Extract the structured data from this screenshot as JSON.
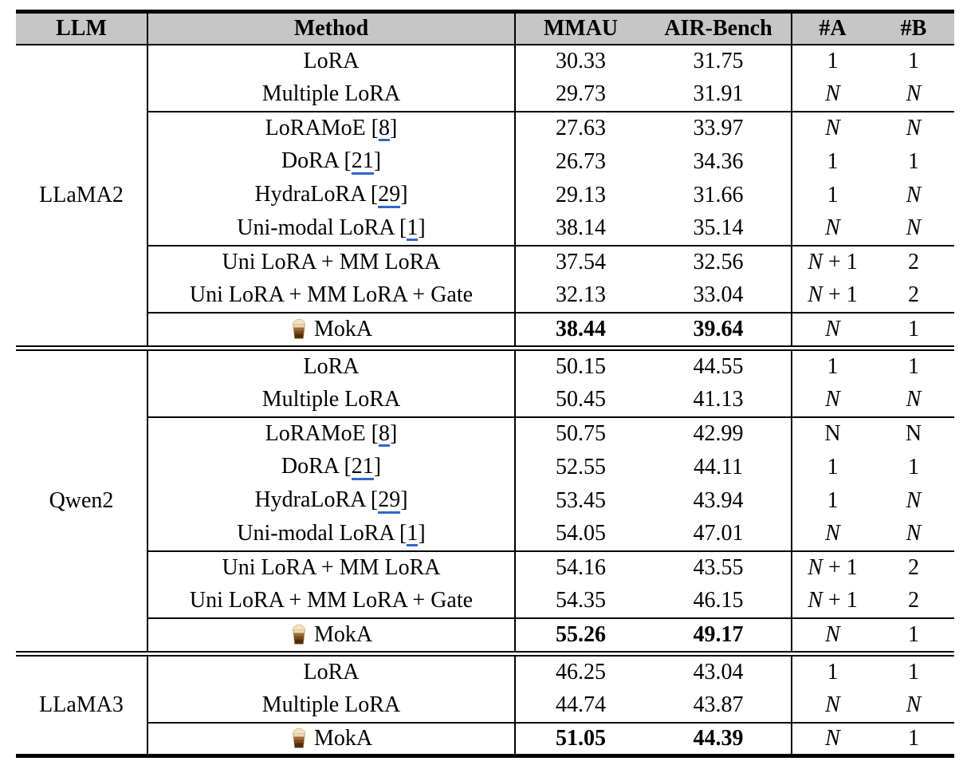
{
  "table": {
    "header": {
      "llm": "LLM",
      "method": "Method",
      "mmau": "MMAU",
      "air_bench": "AIR-Bench",
      "num_a": "#A",
      "num_b": "#B"
    },
    "style": {
      "header_bg": "#c6c6c6",
      "rule_color": "#000000",
      "citation_underline": "#2f66cc"
    },
    "moka_icon": "iced-mocha-drink",
    "groups": [
      {
        "llm": "LLaMA2",
        "blocks": [
          [
            {
              "method": "LoRA",
              "mmau": "30.33",
              "air": "31.75",
              "a": "1",
              "b": "1"
            },
            {
              "method": "Multiple LoRA",
              "mmau": "29.73",
              "air": "31.91",
              "a": "N",
              "b": "N"
            }
          ],
          [
            {
              "method": "LoRAMoE",
              "cite": "8",
              "mmau": "27.63",
              "air": "33.97",
              "a": "N",
              "b": "N"
            },
            {
              "method": "DoRA",
              "cite": "21",
              "mmau": "26.73",
              "air": "34.36",
              "a": "1",
              "b": "1"
            },
            {
              "method": "HydraLoRA",
              "cite": "29",
              "mmau": "29.13",
              "air": "31.66",
              "a": "1",
              "b": "N"
            },
            {
              "method": "Uni-modal LoRA",
              "cite": "1",
              "mmau": "38.14",
              "air": "35.14",
              "a": "N",
              "b": "N"
            }
          ],
          [
            {
              "method": "Uni LoRA + MM LoRA",
              "mmau": "37.54",
              "air": "32.56",
              "a": "N + 1",
              "b": "2"
            },
            {
              "method": "Uni LoRA + MM LoRA + Gate",
              "mmau": "32.13",
              "air": "33.04",
              "a": "N + 1",
              "b": "2"
            }
          ],
          [
            {
              "method": "MokA",
              "moka": true,
              "bold": true,
              "mmau": "38.44",
              "air": "39.64",
              "a": "N",
              "b": "1"
            }
          ]
        ]
      },
      {
        "llm": "Qwen2",
        "blocks": [
          [
            {
              "method": "LoRA",
              "mmau": "50.15",
              "air": "44.55",
              "a": "1",
              "b": "1"
            },
            {
              "method": "Multiple LoRA",
              "mmau": "50.45",
              "air": "41.13",
              "a": "N",
              "b": "N"
            }
          ],
          [
            {
              "method": "LoRAMoE",
              "cite": "8",
              "mmau": "50.75",
              "air": "42.99",
              "a": "N",
              "b": "N",
              "roman_n": true
            },
            {
              "method": "DoRA",
              "cite": "21",
              "mmau": "52.55",
              "air": "44.11",
              "a": "1",
              "b": "1"
            },
            {
              "method": "HydraLoRA",
              "cite": "29",
              "mmau": "53.45",
              "air": "43.94",
              "a": "1",
              "b": "N"
            },
            {
              "method": "Uni-modal LoRA",
              "cite": "1",
              "mmau": "54.05",
              "air": "47.01",
              "a": "N",
              "b": "N"
            }
          ],
          [
            {
              "method": "Uni LoRA + MM LoRA",
              "mmau": "54.16",
              "air": "43.55",
              "a": "N + 1",
              "b": "2"
            },
            {
              "method": "Uni LoRA + MM LoRA + Gate",
              "mmau": "54.35",
              "air": "46.15",
              "a": "N + 1",
              "b": "2"
            }
          ],
          [
            {
              "method": "MokA",
              "moka": true,
              "bold": true,
              "mmau": "55.26",
              "air": "49.17",
              "a": "N",
              "b": "1"
            }
          ]
        ]
      },
      {
        "llm": "LLaMA3",
        "blocks": [
          [
            {
              "method": "LoRA",
              "mmau": "46.25",
              "air": "43.04",
              "a": "1",
              "b": "1"
            },
            {
              "method": "Multiple LoRA",
              "mmau": "44.74",
              "air": "43.87",
              "a": "N",
              "b": "N"
            }
          ],
          [
            {
              "method": "MokA",
              "moka": true,
              "bold": true,
              "mmau": "51.05",
              "air": "44.39",
              "a": "N",
              "b": "1"
            }
          ]
        ]
      }
    ]
  }
}
